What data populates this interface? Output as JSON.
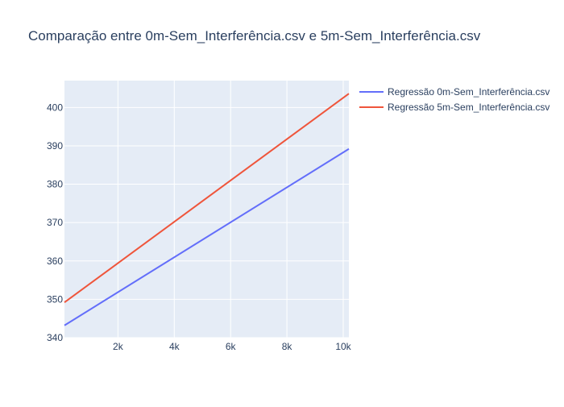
{
  "chart_data": {
    "type": "line",
    "title": "Comparação entre 0m-Sem_Interferência.csv e 5m-Sem_Interferência.csv",
    "xlabel": "",
    "ylabel": "",
    "xlim": [
      100,
      10200
    ],
    "ylim": [
      340,
      407
    ],
    "x_ticks": [
      2000,
      4000,
      6000,
      8000,
      10000
    ],
    "x_tick_labels": [
      "2k",
      "4k",
      "6k",
      "8k",
      "10k"
    ],
    "y_ticks": [
      340,
      350,
      360,
      370,
      380,
      390,
      400
    ],
    "y_tick_labels": [
      "340",
      "350",
      "360",
      "370",
      "380",
      "390",
      "400"
    ],
    "grid": true,
    "legend_position": "top-right, outside plot",
    "series": [
      {
        "name": "Regressão 0m-Sem_Interferência.csv",
        "color": "#636efa",
        "x": [
          100,
          10200
        ],
        "y": [
          343.2,
          389.2
        ]
      },
      {
        "name": "Regressão 5m-Sem_Interferência.csv",
        "color": "#ef553b",
        "x": [
          100,
          10200
        ],
        "y": [
          349.2,
          403.6
        ]
      }
    ]
  }
}
